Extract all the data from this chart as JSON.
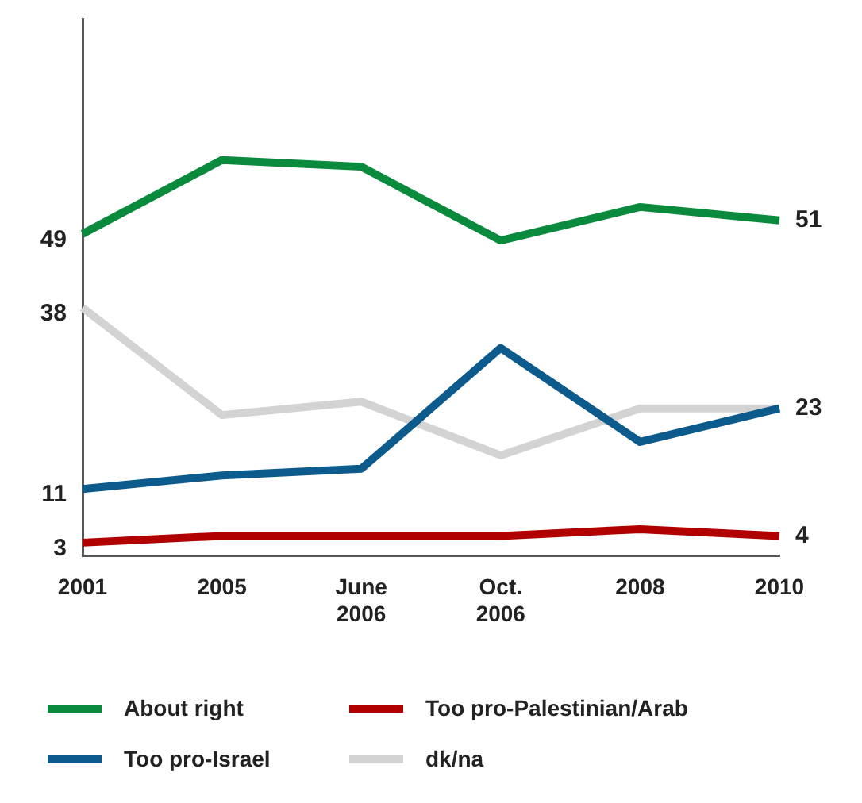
{
  "chart_data": {
    "type": "line",
    "categories": [
      "2001",
      "2005",
      "June 2006",
      "Oct. 2006",
      "2008",
      "2010"
    ],
    "ylim": [
      1,
      81
    ],
    "tick_labels": "x",
    "grid": false,
    "legend": "bottom",
    "marker": "none",
    "line_style": "solid",
    "series": [
      {
        "name": "About right",
        "color": "#0a8a3c",
        "values": [
          49,
          60,
          59,
          48,
          53,
          51
        ],
        "value_labels": [
          "49",
          null,
          null,
          null,
          null,
          "51"
        ]
      },
      {
        "name": "Too pro-Palestinian/Arab",
        "color": "#b00000",
        "values": [
          3,
          4,
          4,
          4,
          5,
          4
        ],
        "value_labels": [
          "3",
          null,
          null,
          null,
          null,
          "4"
        ]
      },
      {
        "name": "Too pro-Israel",
        "color": "#0d5a8c",
        "values": [
          11,
          13,
          14,
          32,
          18,
          23
        ],
        "value_labels": [
          "11",
          null,
          null,
          null,
          null,
          "23"
        ]
      },
      {
        "name": "dk/na",
        "color": "#d3d3d3",
        "values": [
          38,
          22,
          24,
          16,
          23,
          23
        ],
        "value_labels": [
          "38",
          null,
          null,
          null,
          null,
          null
        ]
      }
    ]
  }
}
